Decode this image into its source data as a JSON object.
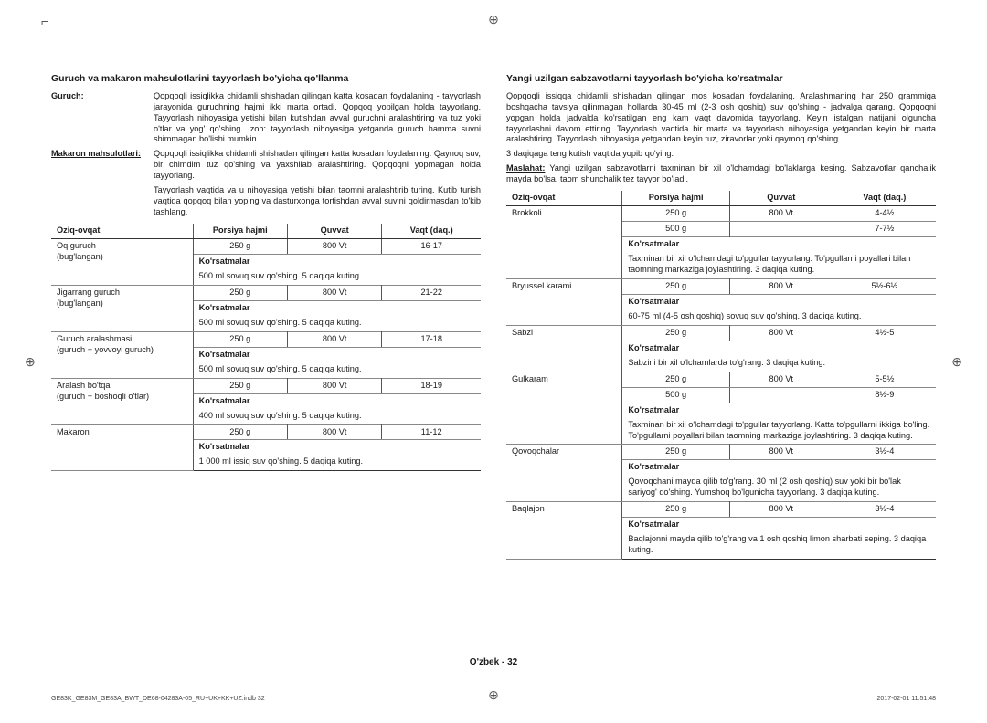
{
  "footer": "O'zbek - 32",
  "meta_left": "GE83K_GE83M_GE83A_BWT_DE68-04283A-05_RU+UK+KK+UZ.indb   32",
  "meta_right": "2017-02-01  11:51:48",
  "left": {
    "title": "Guruch va makaron mahsulotlarini tayyorlash bo'yicha qo'llanma",
    "defs": [
      {
        "label": "Guruch:",
        "text": "Qopqoqli issiqlikka chidamli shishadan qilingan katta kosadan foydalaning - tayyorlash jarayonida guruchning hajmi ikki marta ortadi. Qopqoq yopilgan holda tayyorlang. Tayyorlash nihoyasiga yetishi bilan kutishdan avval guruchni aralashtiring va tuz yoki o'tlar va yog' qo'shing. Izoh: tayyorlash nihoyasiga yetganda guruch hamma suvni shimmagan bo'lishi mumkin."
      },
      {
        "label": "Makaron mahsulotlari:",
        "text": "Qopqoqli issiqlikka chidamli shishadan qilingan katta kosadan foydalaning. Qaynoq suv, bir chimdim tuz qo'shing va yaxshilab aralashtiring. Qopqoqni yopmagan holda tayyorlang."
      }
    ],
    "trail": "Tayyorlash vaqtida va u nihoyasiga yetishi bilan taomni aralashtirib turing. Kutib turish vaqtida qopqoq bilan yoping va dasturxonga tortishdan avval suvini qoldirmasdan to'kib tashlang.",
    "th": [
      "Oziq-ovqat",
      "Porsiya hajmi",
      "Quvvat",
      "Vaqt (daq.)"
    ],
    "rows": [
      {
        "food": "Oq guruch (bug'langan)",
        "portion": "250 g",
        "power": "800 Vt",
        "time": "16-17",
        "instr": "500 ml sovuq suv qo'shing. 5 daqiqa kuting."
      },
      {
        "food": "Jigarrang guruch (bug'langan)",
        "portion": "250 g",
        "power": "800 Vt",
        "time": "21-22",
        "instr": "500 ml sovuq suv qo'shing. 5 daqiqa kuting."
      },
      {
        "food": "Guruch aralashmasi (guruch + yovvoyi guruch)",
        "portion": "250 g",
        "power": "800 Vt",
        "time": "17-18",
        "instr": "500 ml sovuq suv qo'shing. 5 daqiqa kuting."
      },
      {
        "food": "Aralash bo'tqa (guruch + boshoqli o'tlar)",
        "portion": "250 g",
        "power": "800 Vt",
        "time": "18-19",
        "instr": "400 ml sovuq suv qo'shing. 5 daqiqa kuting."
      },
      {
        "food": "Makaron",
        "portion": "250 g",
        "power": "800 Vt",
        "time": "11-12",
        "instr": "1 000 ml issiq suv qo'shing. 5 daqiqa kuting."
      }
    ],
    "klabel": "Ko'rsatmalar"
  },
  "right": {
    "title": "Yangi uzilgan sabzavotlarni tayyorlash bo'yicha ko'rsatmalar",
    "paras": [
      "Qopqoqli issiqqa chidamli shishadan qilingan mos kosadan foydalaning. Aralashmaning har 250 grammiga boshqacha tavsiya qilinmagan hollarda 30-45 ml (2-3 osh qoshiq) suv qo'shing - jadvalga qarang. Qopqoqni yopgan holda jadvalda ko'rsatilgan eng kam vaqt davomida tayyorlang. Keyin istalgan natijani olguncha tayyorlashni davom ettiring. Tayyorlash vaqtida bir marta va tayyorlash nihoyasiga yetgandan keyin bir marta aralashtiring. Tayyorlash nihoyasiga yetgandan keyin tuz, ziravorlar yoki qaymoq qo'shing.",
      "3 daqiqaga teng kutish vaqtida yopib qo'ying."
    ],
    "tip_label": "Maslahat:",
    "tip_text": "Yangi uzilgan sabzavotlarni taxminan bir xil o'lchamdagi bo'laklarga kesing. Sabzavotlar qanchalik mayda bo'lsa, taom shunchalik tez tayyor bo'ladi.",
    "th": [
      "Oziq-ovqat",
      "Porsiya hajmi",
      "Quvvat",
      "Vaqt (daq.)"
    ],
    "klabel": "Ko'rsatmalar",
    "rows": [
      {
        "food": "Brokkoli",
        "portions": [
          "250 g",
          "500 g"
        ],
        "power": "800 Vt",
        "times": [
          "4-4½",
          "7-7½"
        ],
        "instr": "Taxminan bir xil o'lchamdagi to'pgullar tayyorlang. To'pgullarni poyallari bilan taomning markaziga joylashtiring. 3 daqiqa kuting."
      },
      {
        "food": "Bryussel karami",
        "portions": [
          "250 g"
        ],
        "power": "800 Vt",
        "times": [
          "5½-6½"
        ],
        "instr": "60-75 ml (4-5 osh qoshiq) sovuq suv qo'shing. 3 daqiqa kuting."
      },
      {
        "food": "Sabzi",
        "portions": [
          "250 g"
        ],
        "power": "800 Vt",
        "times": [
          "4½-5"
        ],
        "instr": "Sabzini bir xil o'lchamlarda to'g'rang. 3 daqiqa kuting."
      },
      {
        "food": "Gulkaram",
        "portions": [
          "250 g",
          "500 g"
        ],
        "power": "800 Vt",
        "times": [
          "5-5½",
          "8½-9"
        ],
        "instr": "Taxminan bir xil o'lchamdagi to'pgullar tayyorlang. Katta to'pgullarni ikkiga bo'ling. To'pgullarni poyallari bilan taomning markaziga joylashtiring. 3 daqiqa kuting."
      },
      {
        "food": "Qovoqchalar",
        "portions": [
          "250 g"
        ],
        "power": "800 Vt",
        "times": [
          "3½-4"
        ],
        "instr": "Qovoqchani mayda qilib to'g'rang. 30 ml (2 osh qoshiq) suv yoki bir bo'lak sariyog' qo'shing. Yumshoq bo'lgunicha tayyorlang. 3 daqiqa kuting."
      },
      {
        "food": "Baqlajon",
        "portions": [
          "250 g"
        ],
        "power": "800 Vt",
        "times": [
          "3½-4"
        ],
        "instr": "Baqlajonni mayda qilib to'g'rang va 1 osh qoshiq limon sharbati seping. 3 daqiqa kuting."
      }
    ]
  }
}
